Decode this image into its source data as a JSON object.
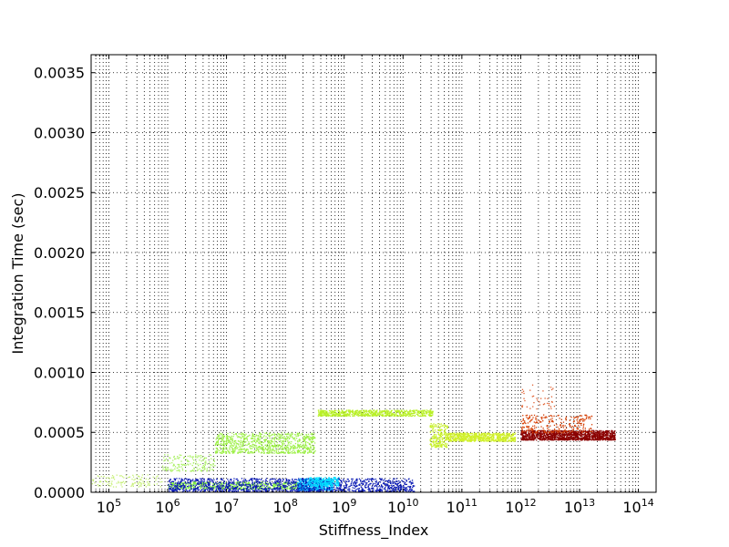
{
  "chart_data": {
    "type": "scatter",
    "title": "",
    "xlabel": "Stiffness_Index",
    "ylabel": "Integration Time (sec)",
    "xscale": "log",
    "xlim": [
      50000,
      200000000000000
    ],
    "ylim": [
      0,
      0.00365
    ],
    "grid": true,
    "grid_style": "dotted",
    "colormap": "jet",
    "x_ticks": [
      {
        "value": 100000,
        "base": "10",
        "exp": "5"
      },
      {
        "value": 1000000,
        "base": "10",
        "exp": "6"
      },
      {
        "value": 10000000,
        "base": "10",
        "exp": "7"
      },
      {
        "value": 100000000,
        "base": "10",
        "exp": "8"
      },
      {
        "value": 1000000000,
        "base": "10",
        "exp": "9"
      },
      {
        "value": 10000000000,
        "base": "10",
        "exp": "10"
      },
      {
        "value": 100000000000,
        "base": "10",
        "exp": "11"
      },
      {
        "value": 1000000000000,
        "base": "10",
        "exp": "12"
      },
      {
        "value": 10000000000000,
        "base": "10",
        "exp": "13"
      },
      {
        "value": 100000000000000,
        "base": "10",
        "exp": "14"
      }
    ],
    "y_ticks": [
      {
        "value": 0,
        "label": "0.0000"
      },
      {
        "value": 0.0005,
        "label": "0.0005"
      },
      {
        "value": 0.001,
        "label": "0.0010"
      },
      {
        "value": 0.0015,
        "label": "0.0015"
      },
      {
        "value": 0.002,
        "label": "0.0020"
      },
      {
        "value": 0.0025,
        "label": "0.0025"
      },
      {
        "value": 0.003,
        "label": "0.0030"
      },
      {
        "value": 0.0035,
        "label": "0.0035"
      }
    ],
    "clusters": [
      {
        "color": "#c8f07a",
        "xlog": [
          4.7,
          5.9
        ],
        "y": [
          5e-05,
          0.00015
        ],
        "n": 120
      },
      {
        "color": "#a8f060",
        "xlog": [
          5.9,
          6.8
        ],
        "y": [
          0.00018,
          0.00032
        ],
        "n": 160
      },
      {
        "color": "#9ef04a",
        "xlog": [
          6.8,
          8.5
        ],
        "y": [
          0.00033,
          0.0005
        ],
        "n": 900
      },
      {
        "color": "#7ff03c",
        "xlog": [
          6.0,
          8.3
        ],
        "y": [
          3e-05,
          9e-05
        ],
        "n": 600
      },
      {
        "color": "#00b4ff",
        "xlog": [
          8.2,
          8.8
        ],
        "y": [
          2e-05,
          0.00012
        ],
        "n": 500
      },
      {
        "color": "#0a1ab4",
        "xlog": [
          6.0,
          10.2
        ],
        "y": [
          1e-05,
          0.00012
        ],
        "n": 1400
      },
      {
        "color": "#00e0ff",
        "xlog": [
          8.4,
          8.9
        ],
        "y": [
          5e-05,
          0.00013
        ],
        "n": 200
      },
      {
        "color": "#b8f028",
        "xlog": [
          8.55,
          10.5
        ],
        "y": [
          0.00064,
          0.00069
        ],
        "n": 700
      },
      {
        "color": "#c8f028",
        "xlog": [
          10.45,
          10.75
        ],
        "y": [
          0.00038,
          0.00058
        ],
        "n": 220
      },
      {
        "color": "#d0f02a",
        "xlog": [
          10.75,
          11.9
        ],
        "y": [
          0.00043,
          0.0005
        ],
        "n": 700
      },
      {
        "color": "#8b0000",
        "xlog": [
          12.0,
          13.6
        ],
        "y": [
          0.00044,
          0.00052
        ],
        "n": 1300
      },
      {
        "color": "#d43c00",
        "xlog": [
          12.0,
          13.2
        ],
        "y": [
          0.0005,
          0.00065
        ],
        "n": 250
      },
      {
        "color": "#e06030",
        "xlog": [
          12.0,
          12.6
        ],
        "y": [
          0.0007,
          0.0009
        ],
        "n": 40
      }
    ]
  }
}
